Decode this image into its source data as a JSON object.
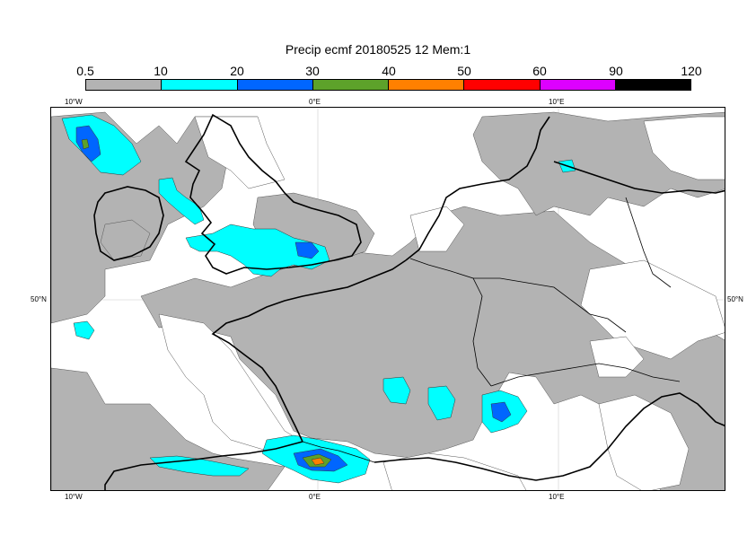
{
  "title": "Precip ecmf 20180525 12 Mem:1",
  "colorbar": {
    "ticks": [
      "0.5",
      "10",
      "20",
      "30",
      "40",
      "50",
      "60",
      "90",
      "120"
    ],
    "segments": [
      {
        "range": "0.5-10",
        "color": "#b3b3b3"
      },
      {
        "range": "10-20",
        "color": "#00ffff"
      },
      {
        "range": "20-30",
        "color": "#0066ff"
      },
      {
        "range": "30-40",
        "color": "#5da22a"
      },
      {
        "range": "40-50",
        "color": "#ff8000"
      },
      {
        "range": "50-60",
        "color": "#ff0000"
      },
      {
        "range": "60-90",
        "color": "#dd00ff"
      },
      {
        "range": "90-120",
        "color": "#000000"
      }
    ]
  },
  "axes": {
    "top": [
      "10°W",
      "0°E",
      "10°E"
    ],
    "bottom": [
      "10°W",
      "0°E",
      "10°E"
    ],
    "left": [
      "50°N"
    ],
    "right": [
      "50°N"
    ]
  },
  "map": {
    "land_color": "#ffffff",
    "coastline_color": "#000000",
    "gridline_color": "#cccccc"
  }
}
